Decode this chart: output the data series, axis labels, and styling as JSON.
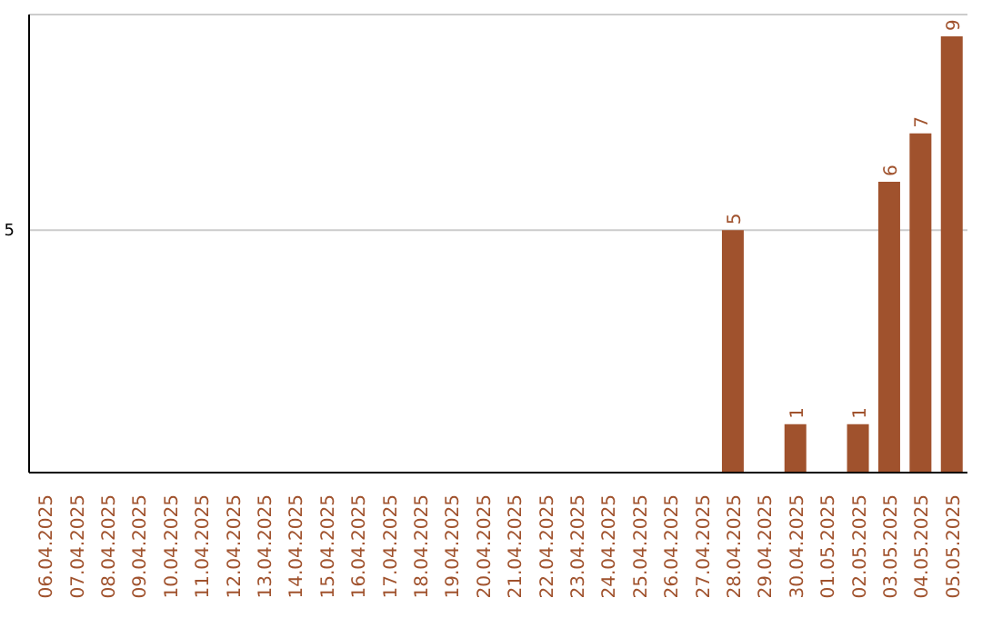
{
  "chart_data": {
    "type": "bar",
    "categories": [
      "06.04.2025",
      "07.04.2025",
      "08.04.2025",
      "09.04.2025",
      "10.04.2025",
      "11.04.2025",
      "12.04.2025",
      "13.04.2025",
      "14.04.2025",
      "15.04.2025",
      "16.04.2025",
      "17.04.2025",
      "18.04.2025",
      "19.04.2025",
      "20.04.2025",
      "21.04.2025",
      "22.04.2025",
      "23.04.2025",
      "24.04.2025",
      "25.04.2025",
      "26.04.2025",
      "27.04.2025",
      "28.04.2025",
      "29.04.2025",
      "30.04.2025",
      "01.05.2025",
      "02.05.2025",
      "03.05.2025",
      "04.05.2025",
      "05.05.2025"
    ],
    "values": [
      null,
      null,
      null,
      null,
      null,
      null,
      null,
      null,
      null,
      null,
      null,
      null,
      null,
      null,
      null,
      null,
      null,
      null,
      null,
      null,
      null,
      null,
      5,
      null,
      1,
      null,
      1,
      6,
      7,
      9
    ],
    "data_labels": true,
    "color": "#a0522d",
    "ylim": [
      0,
      9.45
    ],
    "yticks": [
      5
    ],
    "grid": "y"
  }
}
